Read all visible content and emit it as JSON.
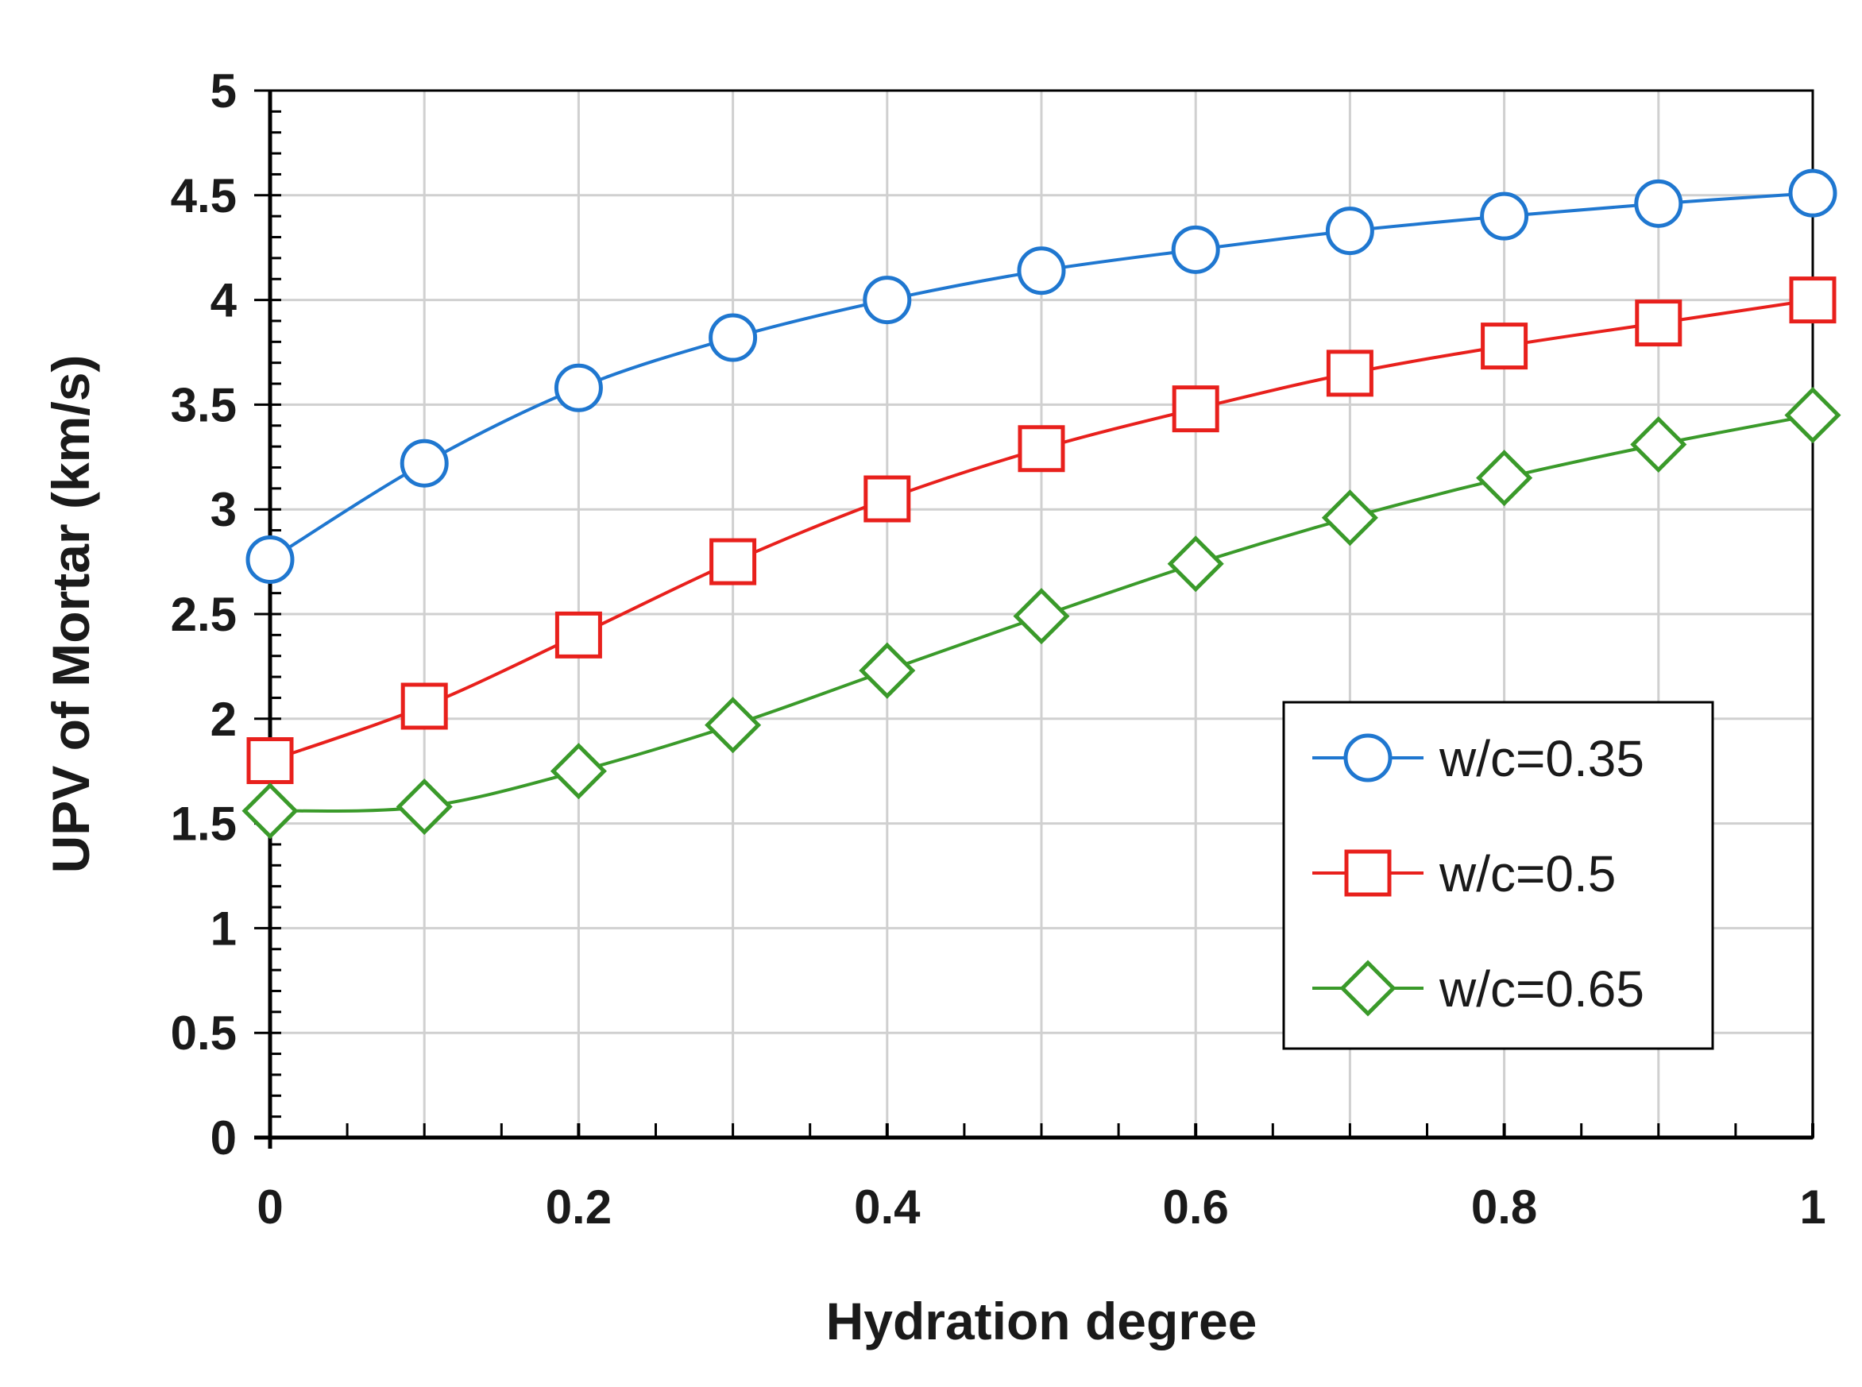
{
  "chart_data": {
    "type": "line",
    "title": "",
    "xlabel": "Hydration degree",
    "ylabel": "UPV of Mortar (km/s)",
    "xlim": [
      0,
      1
    ],
    "ylim": [
      0,
      5
    ],
    "x_ticks": [
      "0",
      "0.2",
      "0.4",
      "0.6",
      "0.8",
      "1"
    ],
    "y_ticks": [
      "0",
      "0.5",
      "1",
      "1.5",
      "2",
      "2.5",
      "3",
      "3.5",
      "4",
      "4.5",
      "5"
    ],
    "grid": true,
    "legend_position": "bottom-right",
    "x": [
      0,
      0.1,
      0.2,
      0.3,
      0.4,
      0.5,
      0.6,
      0.7,
      0.8,
      0.9,
      1.0
    ],
    "series": [
      {
        "name": "w/c=0.35",
        "marker": "circle",
        "color": "#1f77d0",
        "values": [
          2.76,
          3.22,
          3.58,
          3.82,
          4.0,
          4.14,
          4.24,
          4.33,
          4.4,
          4.46,
          4.51
        ]
      },
      {
        "name": "w/c=0.5",
        "marker": "square",
        "color": "#e8201c",
        "values": [
          1.8,
          2.06,
          2.4,
          2.75,
          3.05,
          3.29,
          3.48,
          3.65,
          3.78,
          3.89,
          4.0
        ]
      },
      {
        "name": "w/c=0.65",
        "marker": "diamond",
        "color": "#3a9a2a",
        "values": [
          1.56,
          1.58,
          1.75,
          1.97,
          2.23,
          2.49,
          2.74,
          2.96,
          3.15,
          3.31,
          3.45
        ]
      }
    ]
  }
}
